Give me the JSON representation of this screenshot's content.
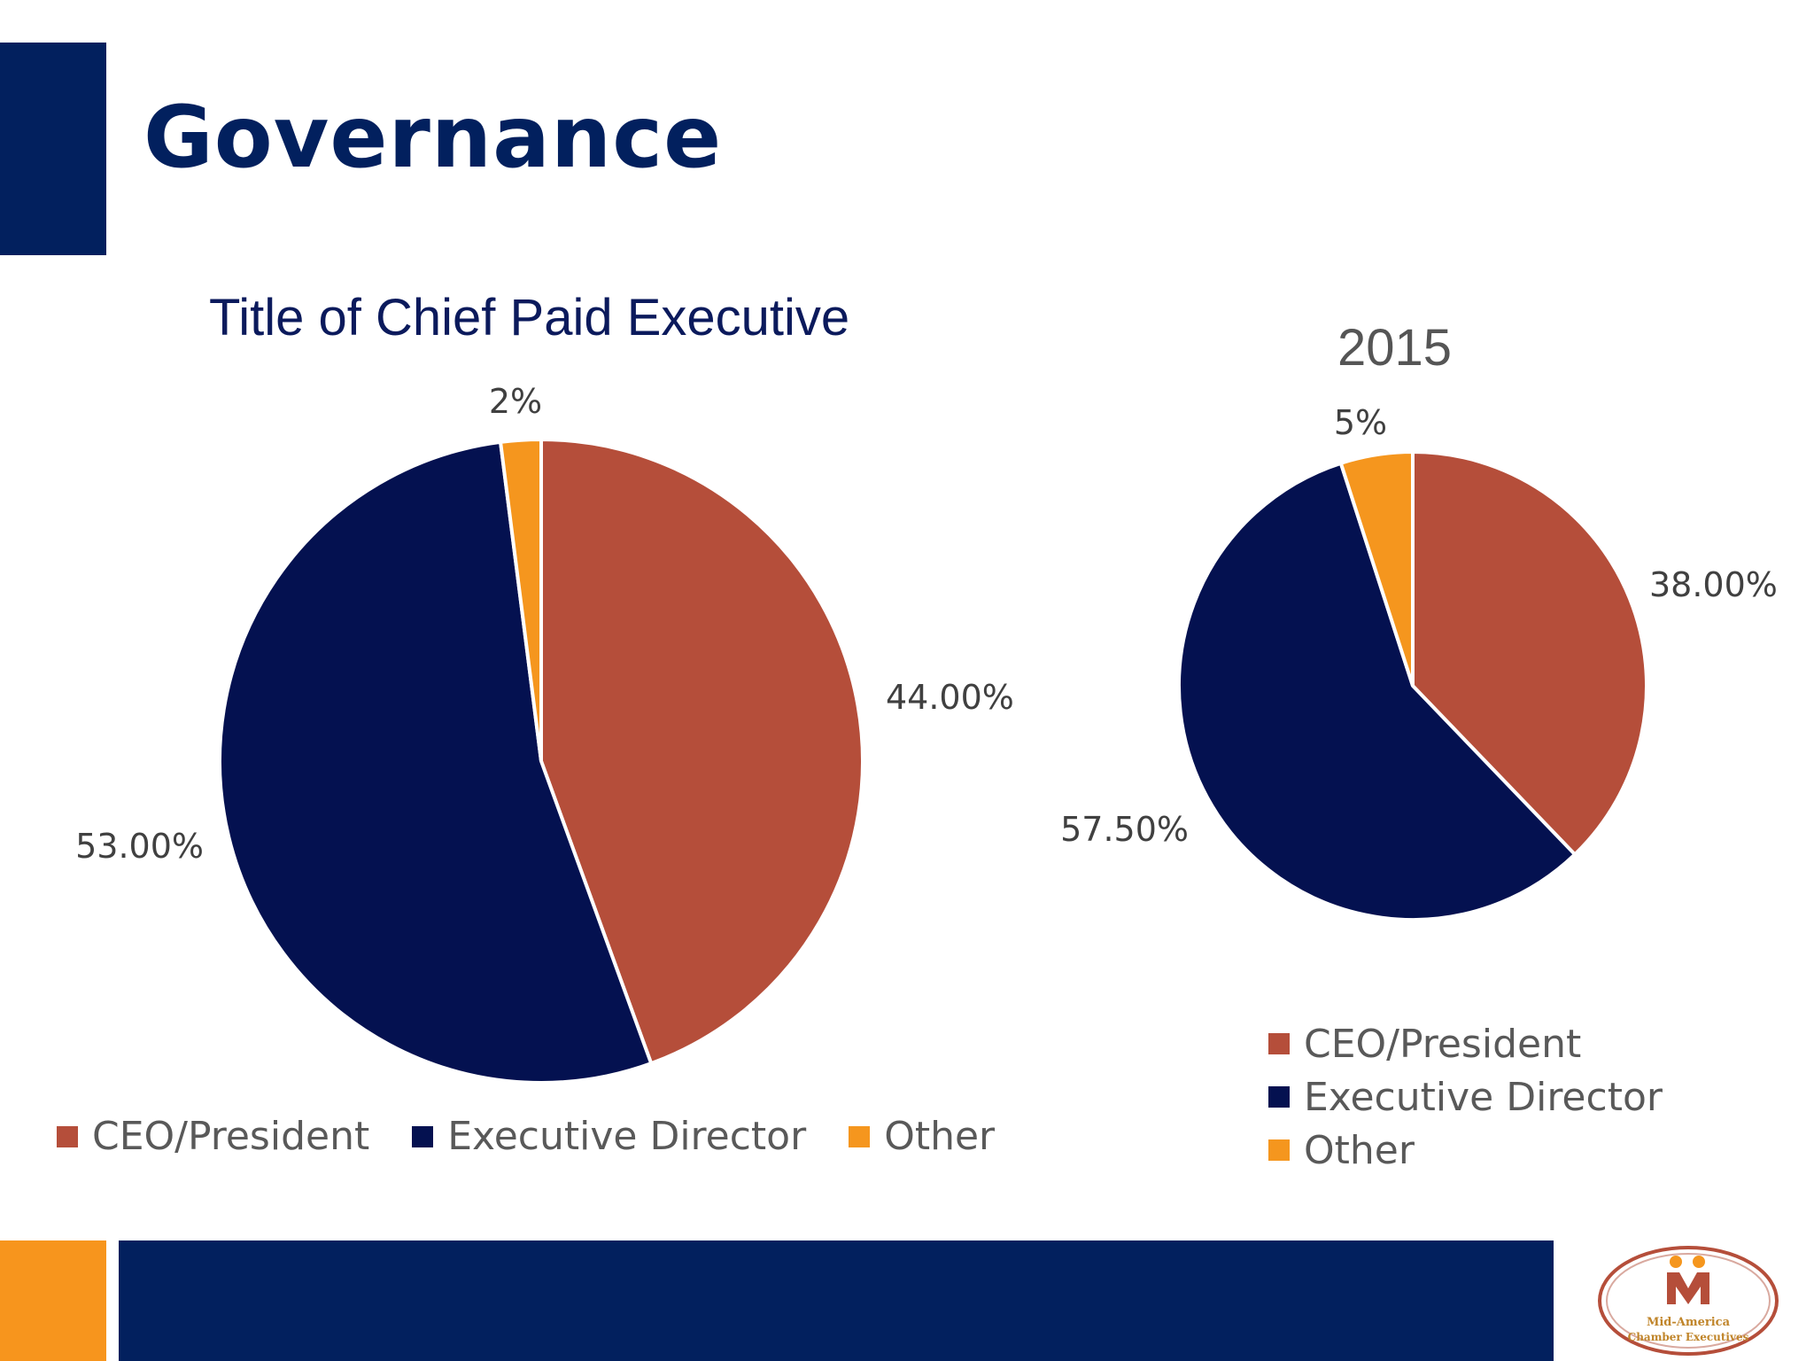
{
  "slide": {
    "title": "Governance"
  },
  "colors": {
    "ceo": "#b54e3a",
    "exec": "#041150",
    "other": "#f5961e",
    "accent": "#02205e"
  },
  "logo": {
    "line1": "Mid-America",
    "line2": "Chamber Executives"
  },
  "chart_data": [
    {
      "type": "pie",
      "title": "Title of Chief Paid Executive",
      "categories": [
        "CEO/President",
        "Executive Director",
        "Other"
      ],
      "values": [
        44.0,
        53.0,
        2.0
      ],
      "labels": [
        "44.00%",
        "53.00%",
        "2%"
      ],
      "legend": "bottom"
    },
    {
      "type": "pie",
      "title": "2015",
      "categories": [
        "CEO/President",
        "Executive Director",
        "Other"
      ],
      "values": [
        38.0,
        57.5,
        5.0
      ],
      "labels": [
        "38.00%",
        "57.50%",
        "5%"
      ],
      "legend": "bottom-right"
    }
  ]
}
